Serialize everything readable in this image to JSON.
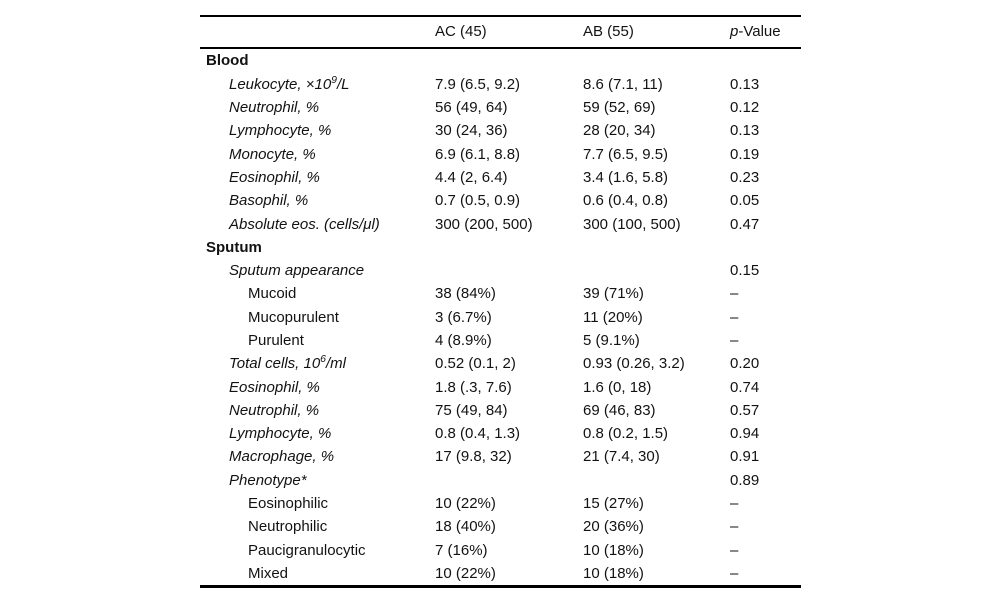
{
  "table": {
    "header": {
      "col_label": "",
      "col_ac": "AC (45)",
      "col_ab": "AB (55)",
      "p_italic": "p",
      "p_rest": "-Value"
    },
    "rows": [
      {
        "label": "Blood",
        "ac": "",
        "ab": "",
        "p": ""
      },
      {
        "label": "Leukocyte, ×10",
        "sup": "9",
        "suffix": "/L",
        "ac": "7.9 (6.5, 9.2)",
        "ab": "8.6 (7.1, 11)",
        "p": "0.13"
      },
      {
        "label": "Neutrophil, %",
        "ac": "56 (49, 64)",
        "ab": "59 (52, 69)",
        "p": "0.12"
      },
      {
        "label": "Lymphocyte, %",
        "ac": "30 (24, 36)",
        "ab": "28 (20, 34)",
        "p": "0.13"
      },
      {
        "label": "Monocyte, %",
        "ac": "6.9 (6.1, 8.8)",
        "ab": "7.7 (6.5, 9.5)",
        "p": "0.19"
      },
      {
        "label": "Eosinophil, %",
        "ac": "4.4 (2, 6.4)",
        "ab": "3.4 (1.6, 5.8)",
        "p": "0.23"
      },
      {
        "label": "Basophil, %",
        "ac": "0.7 (0.5, 0.9)",
        "ab": "0.6 (0.4, 0.8)",
        "p": "0.05"
      },
      {
        "label": "Absolute eos. (cells/μl)",
        "ac": "300 (200, 500)",
        "ab": "300 (100, 500)",
        "p": "0.47"
      },
      {
        "label": "Sputum",
        "ac": "",
        "ab": "",
        "p": ""
      },
      {
        "label": "Sputum appearance",
        "ac": "",
        "ab": "",
        "p": "0.15"
      },
      {
        "label": "Mucoid",
        "ac": "38 (84%)",
        "ab": "39 (71%)",
        "p": "–"
      },
      {
        "label": "Mucopurulent",
        "ac": "3 (6.7%)",
        "ab": "11 (20%)",
        "p": "–"
      },
      {
        "label": "Purulent",
        "ac": "4 (8.9%)",
        "ab": "5 (9.1%)",
        "p": "–"
      },
      {
        "label": "Total cells, 10",
        "sup": "6",
        "suffix": "/ml",
        "ac": "0.52 (0.1, 2)",
        "ab": "0.93 (0.26, 3.2)",
        "p": "0.20"
      },
      {
        "label": "Eosinophil, %",
        "ac": "1.8 (.3, 7.6)",
        "ab": "1.6 (0, 18)",
        "p": "0.74"
      },
      {
        "label": "Neutrophil, %",
        "ac": "75 (49, 84)",
        "ab": "69 (46, 83)",
        "p": "0.57"
      },
      {
        "label": "Lymphocyte, %",
        "ac": "0.8 (0.4, 1.3)",
        "ab": "0.8 (0.2, 1.5)",
        "p": "0.94"
      },
      {
        "label": "Macrophage, %",
        "ac": "17 (9.8, 32)",
        "ab": "21 (7.4, 30)",
        "p": "0.91"
      },
      {
        "label": "Phenotype*",
        "ac": "",
        "ab": "",
        "p": "0.89"
      },
      {
        "label": "Eosinophilic",
        "ac": "10 (22%)",
        "ab": "15 (27%)",
        "p": "–"
      },
      {
        "label": "Neutrophilic",
        "ac": "18 (40%)",
        "ab": "20 (36%)",
        "p": "–"
      },
      {
        "label": "Paucigranulocytic",
        "ac": "7 (16%)",
        "ab": "10 (18%)",
        "p": "–"
      },
      {
        "label": "Mixed",
        "ac": "10 (22%)",
        "ab": "10 (18%)",
        "p": "–"
      }
    ]
  }
}
